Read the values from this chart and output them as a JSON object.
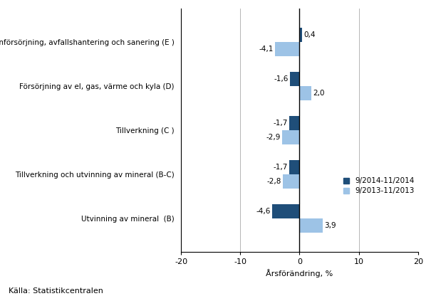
{
  "categories": [
    "Utvinning av mineral  (B)",
    "Tillverkning och utvinning av mineral (B-C)",
    "Tillverkning (C )",
    "Försörjning av el, gas, värme och kyla (D)",
    "Vattenförsörjning, avfallshantering och sanering (E )"
  ],
  "series1_values": [
    -4.6,
    -1.7,
    -1.7,
    -1.6,
    0.4
  ],
  "series2_values": [
    3.9,
    -2.8,
    -2.9,
    2.0,
    -4.1
  ],
  "series1_label": "9/2014-11/2014",
  "series2_label": "9/2013-11/2013",
  "series1_color": "#1F4E79",
  "series2_color": "#9DC3E6",
  "xlabel": "Årsförändring, %",
  "xlim": [
    -20,
    20
  ],
  "xticks": [
    -20,
    -10,
    0,
    10,
    20
  ],
  "source": "Källa: Statistikcentralen",
  "bar_height": 0.32,
  "annotation_fontsize": 7.5,
  "label_fontsize": 7.5,
  "tick_fontsize": 8,
  "source_fontsize": 8,
  "legend_fontsize": 7.5
}
